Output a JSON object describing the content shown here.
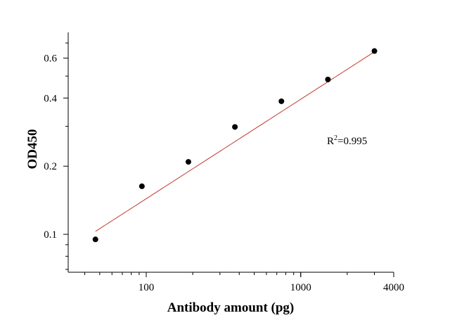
{
  "chart_data": {
    "type": "scatter",
    "title": "",
    "xlabel": "Antibody amount (pg)",
    "ylabel": "OD450",
    "xscale": "log",
    "yscale": "log",
    "xlim": [
      31.25,
      4000
    ],
    "ylim": [
      0.068,
      0.78
    ],
    "xticks": [
      {
        "value": 100,
        "label": "100"
      },
      {
        "value": 1000,
        "label": "1000"
      },
      {
        "value": 4000,
        "label": "4000"
      }
    ],
    "yticks": [
      {
        "value": 0.1,
        "label": "0.1"
      },
      {
        "value": 0.2,
        "label": "0.2"
      },
      {
        "value": 0.4,
        "label": "0.4"
      },
      {
        "value": 0.6,
        "label": "0.6"
      }
    ],
    "grid": false,
    "legend": "none",
    "series": [
      {
        "points": [
          {
            "x": 46.9,
            "y": 0.095
          },
          {
            "x": 93.75,
            "y": 0.163
          },
          {
            "x": 187.5,
            "y": 0.209
          },
          {
            "x": 375,
            "y": 0.298
          },
          {
            "x": 750,
            "y": 0.387
          },
          {
            "x": 1500,
            "y": 0.483
          },
          {
            "x": 3000,
            "y": 0.645
          }
        ],
        "marker_color": "#000000"
      }
    ],
    "fit_curve": {
      "color": "#c0392b",
      "type": "power",
      "x_range": [
        46.9,
        3000
      ],
      "y_range": [
        0.103,
        0.64
      ]
    },
    "annotation": {
      "base": "R",
      "sup": "2",
      "rest": "=0.995"
    }
  }
}
